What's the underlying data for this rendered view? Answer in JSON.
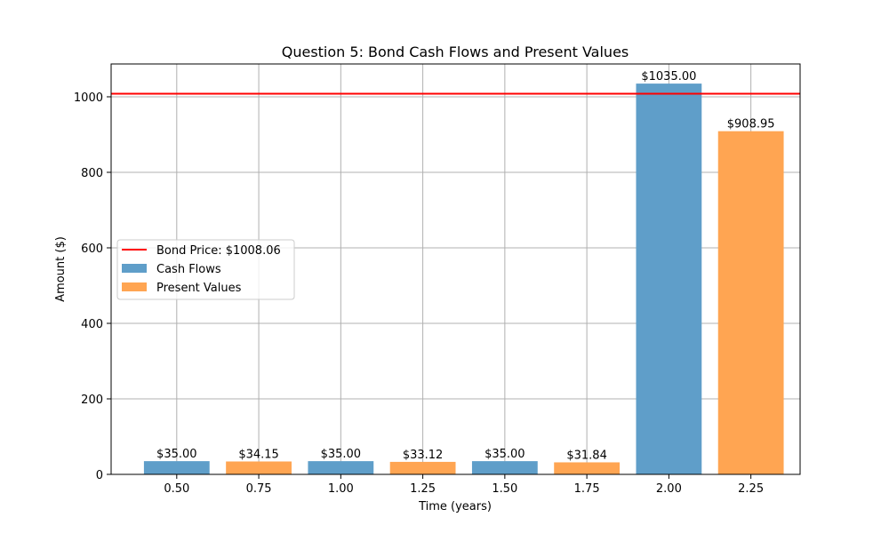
{
  "chart_data": {
    "type": "bar",
    "title": "Question 5: Bond Cash Flows and Present Values",
    "xlabel": "Time (years)",
    "ylabel": "Amount ($)",
    "xlim": [
      0.3,
      2.4
    ],
    "ylim": [
      0,
      1087
    ],
    "xticks": [
      "0.50",
      "0.75",
      "1.00",
      "1.25",
      "1.50",
      "1.75",
      "2.00",
      "2.25"
    ],
    "xtick_values": [
      0.5,
      0.75,
      1.0,
      1.25,
      1.5,
      1.75,
      2.0,
      2.25
    ],
    "yticks": [
      "0",
      "200",
      "400",
      "600",
      "800",
      "1000"
    ],
    "ytick_values": [
      0,
      200,
      400,
      600,
      800,
      1000
    ],
    "grid": true,
    "legend_position": "center-left",
    "bar_width": 0.2,
    "series": [
      {
        "name": "Cash Flows",
        "color": "#5f9ec9",
        "x": [
          0.5,
          1.0,
          1.5,
          2.0
        ],
        "values": [
          35.0,
          35.0,
          35.0,
          1035.0
        ],
        "labels": [
          "$35.00",
          "$35.00",
          "$35.00",
          "$1035.00"
        ]
      },
      {
        "name": "Present Values",
        "color": "#ffa552",
        "x": [
          0.75,
          1.25,
          1.75,
          2.25
        ],
        "values": [
          34.15,
          33.12,
          31.84,
          908.95
        ],
        "labels": [
          "$34.15",
          "$33.12",
          "$31.84",
          "$908.95"
        ]
      }
    ],
    "hline": {
      "name": "Bond Price: $1008.06",
      "value": 1008.06,
      "color": "#ff0000"
    }
  }
}
